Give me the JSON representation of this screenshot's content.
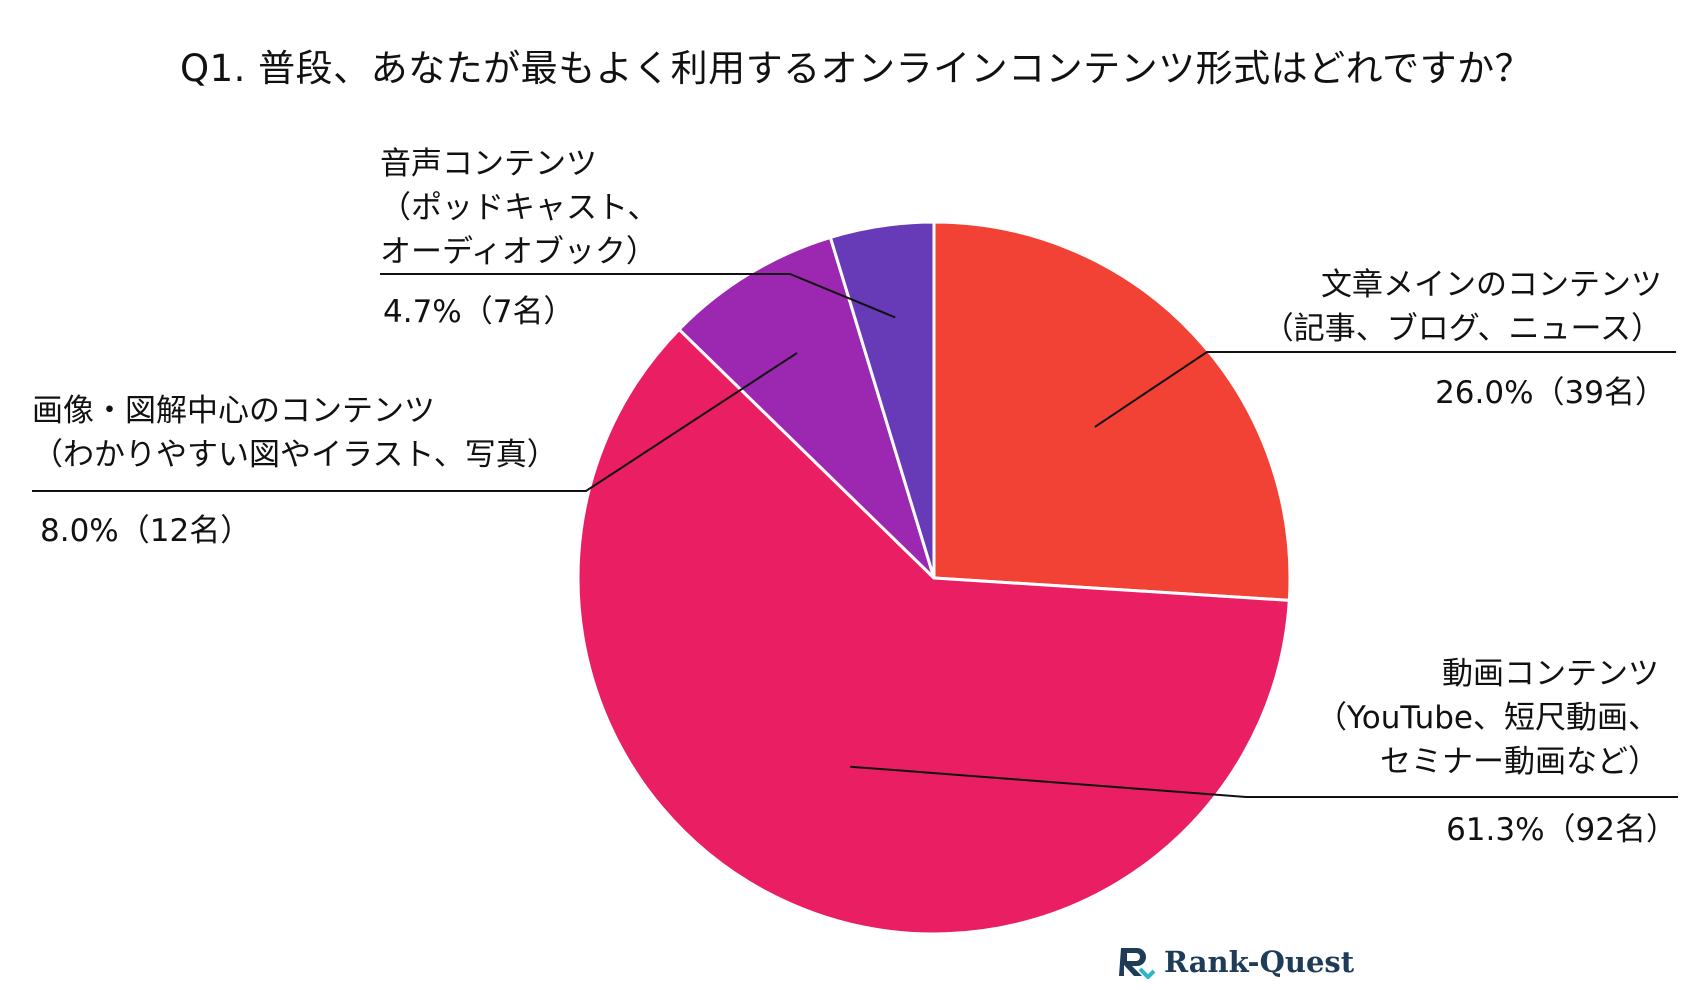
{
  "chart_data": {
    "type": "pie",
    "title": "Q1. 普段、あなたが最もよく利用するオンラインコンテンツ形式はどれですか？",
    "slices": [
      {
        "lines": [
          "文章メインのコンテンツ",
          "（記事、ブログ、ニュース）"
        ],
        "value": 26.0,
        "value_label": "26.0%（39名）",
        "color": "#F24236"
      },
      {
        "lines": [
          "動画コンテンツ",
          "（YouTube、短尺動画、",
          "セミナー動画など）"
        ],
        "value": 61.3,
        "value_label": "61.3%（92名）",
        "color": "#E91E63"
      },
      {
        "lines": [
          "画像・図解中心のコンテンツ",
          "（わかりやすい図やイラスト、写真）"
        ],
        "value": 8.0,
        "value_label": "8.0%（12名）",
        "color": "#9C27B0"
      },
      {
        "lines": [
          "音声コンテンツ",
          "（ポッドキャスト、",
          "オーディオブック）"
        ],
        "value": 4.7,
        "value_label": "4.7%（7名）",
        "color": "#673AB7"
      }
    ],
    "start_angle_deg": 0,
    "direction": "clockwise",
    "legend": "none"
  },
  "brand": {
    "name": "Rank-Quest",
    "color": "#1e3c58",
    "accent": "#2bb7c9"
  }
}
